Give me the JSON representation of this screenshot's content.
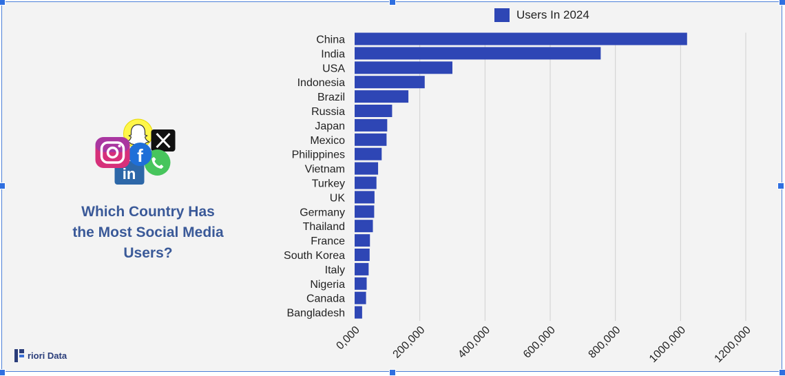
{
  "heading": {
    "lines": [
      "Which Country Has",
      "the Most Social Media",
      "Users?"
    ]
  },
  "brand": {
    "name": "riori Data"
  },
  "icons": [
    "snapchat-icon",
    "x-icon",
    "instagram-icon",
    "facebook-icon",
    "whatsapp-icon",
    "linkedin-icon"
  ],
  "colors": {
    "bar": "#2e46b5",
    "heading": "#3a5998",
    "border": "#4a7fd8"
  },
  "chart_data": {
    "type": "bar",
    "orientation": "horizontal",
    "categories": [
      "China",
      "India",
      "USA",
      "Indonesia",
      "Brazil",
      "Russia",
      "Japan",
      "Mexico",
      "Philippines",
      "Vietnam",
      "Turkey",
      "UK",
      "Germany",
      "Thailand",
      "France",
      "South Korea",
      "Italy",
      "Nigeria",
      "Canada",
      "Bangladesh"
    ],
    "series": [
      {
        "name": "Users In 2024",
        "values": [
          1020000,
          755000,
          300000,
          215000,
          165000,
          115000,
          100000,
          98000,
          83000,
          72000,
          67000,
          61000,
          60000,
          56000,
          47000,
          46000,
          43000,
          37000,
          35000,
          23000
        ]
      }
    ],
    "xlim": [
      0,
      1200000
    ],
    "x_ticks": [
      "0,000",
      "200,000",
      "400,000",
      "600,000",
      "800,000",
      "1000,000",
      "1200,000"
    ],
    "legend": "top",
    "grid": "vertical"
  }
}
